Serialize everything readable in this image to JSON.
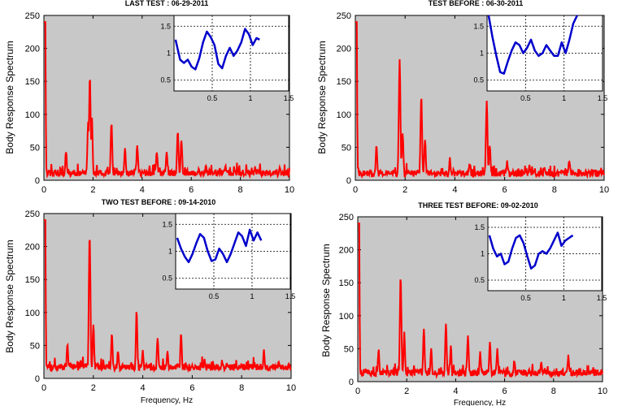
{
  "chart_data": [
    {
      "type": "line",
      "title": "LAST TEST : 06-29-2011",
      "ylabel": "Body Response Spectrum",
      "xlabel": "",
      "xlim": [
        0,
        10
      ],
      "ylim": [
        0,
        250
      ],
      "xticks": [
        0,
        2,
        4,
        6,
        8,
        10
      ],
      "yticks": [
        0,
        50,
        100,
        150,
        200,
        250
      ],
      "background": "#c8c8c8",
      "series": [
        {
          "color": "#ff0000",
          "peaks": [
            [
              0.05,
              250
            ],
            [
              0.9,
              40
            ],
            [
              1.8,
              85
            ],
            [
              1.87,
              155
            ],
            [
              1.95,
              95
            ],
            [
              2.75,
              85
            ],
            [
              3.3,
              45
            ],
            [
              3.8,
              52
            ],
            [
              4.6,
              42
            ],
            [
              5.0,
              38
            ],
            [
              5.45,
              72
            ],
            [
              5.6,
              60
            ],
            [
              6.6,
              20
            ],
            [
              7.4,
              18
            ],
            [
              8.6,
              16
            ],
            [
              9.6,
              15
            ]
          ],
          "baseline": 6
        }
      ],
      "inset": {
        "xlim": [
          0,
          1.5
        ],
        "ylim": [
          0.3,
          1.7
        ],
        "xticks": [
          0.5,
          1,
          1.5
        ],
        "yticks": [
          0.5,
          1,
          1.5
        ],
        "series": [
          {
            "color": "#0000cc",
            "x": [
              0.02,
              0.08,
              0.13,
              0.18,
              0.23,
              0.28,
              0.33,
              0.38,
              0.43,
              0.48,
              0.53,
              0.58,
              0.63,
              0.68,
              0.73,
              0.78,
              0.83,
              0.88,
              0.93,
              0.98,
              1.03,
              1.08,
              1.12
            ],
            "y": [
              1.25,
              0.88,
              0.82,
              0.88,
              0.75,
              0.7,
              0.9,
              1.2,
              1.4,
              1.3,
              1.15,
              0.8,
              0.72,
              0.95,
              1.1,
              0.95,
              1.05,
              1.2,
              1.45,
              1.35,
              1.15,
              1.28,
              1.25
            ]
          }
        ]
      }
    },
    {
      "type": "line",
      "title": "TEST BEFORE : 06-30-2011",
      "ylabel": "Body Response Spectrum",
      "xlabel": "",
      "xlim": [
        0,
        10
      ],
      "ylim": [
        0,
        250
      ],
      "xticks": [
        0,
        2,
        4,
        6,
        8,
        10
      ],
      "yticks": [
        0,
        50,
        100,
        150,
        200,
        250
      ],
      "background": "#c8c8c8",
      "series": [
        {
          "color": "#ff0000",
          "peaks": [
            [
              0.05,
              250
            ],
            [
              0.85,
              50
            ],
            [
              1.78,
              180
            ],
            [
              1.9,
              70
            ],
            [
              2.65,
              125
            ],
            [
              2.8,
              60
            ],
            [
              3.8,
              30
            ],
            [
              4.6,
              22
            ],
            [
              5.28,
              115
            ],
            [
              5.4,
              50
            ],
            [
              6.1,
              25
            ],
            [
              7.0,
              20
            ],
            [
              7.6,
              18
            ],
            [
              8.6,
              28
            ],
            [
              9.5,
              12
            ]
          ],
          "baseline": 5
        }
      ],
      "inset": {
        "xlim": [
          0,
          1.5
        ],
        "ylim": [
          0.3,
          1.7
        ],
        "xticks": [
          0.5,
          1,
          1.5
        ],
        "yticks": [
          0.5,
          1,
          1.5
        ],
        "series": [
          {
            "color": "#0000cc",
            "x": [
              0.02,
              0.07,
              0.12,
              0.17,
              0.22,
              0.27,
              0.32,
              0.37,
              0.42,
              0.47,
              0.52,
              0.57,
              0.62,
              0.67,
              0.72,
              0.77,
              0.82,
              0.87,
              0.92,
              0.97,
              1.02,
              1.07,
              1.12,
              1.17
            ],
            "y": [
              1.7,
              1.3,
              0.95,
              0.65,
              0.62,
              0.85,
              1.05,
              1.2,
              1.15,
              1.0,
              1.1,
              1.25,
              1.05,
              0.95,
              1.0,
              1.15,
              1.05,
              0.95,
              0.95,
              1.2,
              1.0,
              1.25,
              1.55,
              1.75
            ]
          }
        ]
      }
    },
    {
      "type": "line",
      "title": "TWO TEST BEFORE : 09-14-2010",
      "ylabel": "Body Response Spectrum",
      "xlabel": "Frequency, Hz",
      "xlim": [
        0,
        10
      ],
      "ylim": [
        0,
        250
      ],
      "xticks": [
        0,
        2,
        4,
        6,
        8,
        10
      ],
      "yticks": [
        0,
        50,
        100,
        150,
        200,
        250
      ],
      "background": "#c8c8c8",
      "series": [
        {
          "color": "#ff0000",
          "peaks": [
            [
              0.05,
              250
            ],
            [
              0.95,
              50
            ],
            [
              1.85,
              218
            ],
            [
              2.0,
              80
            ],
            [
              2.75,
              65
            ],
            [
              3.0,
              40
            ],
            [
              3.75,
              100
            ],
            [
              4.0,
              40
            ],
            [
              4.6,
              60
            ],
            [
              5.0,
              40
            ],
            [
              5.55,
              65
            ],
            [
              6.5,
              25
            ],
            [
              7.2,
              22
            ],
            [
              8.0,
              20
            ],
            [
              8.9,
              38
            ],
            [
              9.5,
              25
            ]
          ],
          "baseline": 12
        }
      ],
      "inset": {
        "xlim": [
          0,
          1.5
        ],
        "ylim": [
          0.3,
          1.7
        ],
        "xticks": [
          0.5,
          1,
          1.5
        ],
        "yticks": [
          0.5,
          1,
          1.5
        ],
        "series": [
          {
            "color": "#0000cc",
            "x": [
              0.02,
              0.07,
              0.12,
              0.17,
              0.22,
              0.27,
              0.32,
              0.37,
              0.42,
              0.47,
              0.52,
              0.57,
              0.62,
              0.67,
              0.72,
              0.77,
              0.82,
              0.87,
              0.92,
              0.97,
              1.02,
              1.07,
              1.12
            ],
            "y": [
              1.25,
              1.05,
              0.9,
              0.8,
              0.95,
              1.15,
              1.32,
              1.25,
              1.0,
              0.82,
              0.85,
              1.05,
              0.95,
              0.8,
              0.95,
              1.15,
              1.35,
              1.28,
              1.1,
              1.4,
              1.2,
              1.35,
              1.2
            ]
          }
        ]
      }
    },
    {
      "type": "line",
      "title": "THREE TEST BEFORE:    09-02-2010",
      "ylabel": "Body Response Spectrum",
      "xlabel": "Frequency, Hz",
      "xlim": [
        0,
        10
      ],
      "ylim": [
        0,
        250
      ],
      "xticks": [
        0,
        2,
        4,
        6,
        8,
        10
      ],
      "yticks": [
        0,
        50,
        100,
        150,
        200,
        250
      ],
      "background": "#c8c8c8",
      "series": [
        {
          "color": "#ff0000",
          "peaks": [
            [
              0.05,
              250
            ],
            [
              0.85,
              45
            ],
            [
              1.75,
              158
            ],
            [
              1.9,
              70
            ],
            [
              2.7,
              78
            ],
            [
              3.0,
              45
            ],
            [
              3.6,
              85
            ],
            [
              3.8,
              50
            ],
            [
              4.5,
              65
            ],
            [
              5.0,
              40
            ],
            [
              5.4,
              58
            ],
            [
              5.7,
              45
            ],
            [
              6.4,
              30
            ],
            [
              7.5,
              25
            ],
            [
              8.6,
              35
            ],
            [
              9.4,
              20
            ]
          ],
          "baseline": 8
        }
      ],
      "inset": {
        "xlim": [
          0,
          1.5
        ],
        "ylim": [
          0.3,
          1.7
        ],
        "xticks": [
          0.5,
          1,
          1.5
        ],
        "yticks": [
          0.5,
          1,
          1.5
        ],
        "series": [
          {
            "color": "#0000cc",
            "x": [
              0.02,
              0.07,
              0.12,
              0.17,
              0.22,
              0.27,
              0.32,
              0.37,
              0.42,
              0.47,
              0.52,
              0.57,
              0.62,
              0.67,
              0.72,
              0.77,
              0.82,
              0.87,
              0.92,
              0.97,
              1.02,
              1.07,
              1.12
            ],
            "y": [
              1.35,
              1.1,
              0.95,
              1.0,
              0.8,
              0.85,
              1.1,
              1.3,
              1.35,
              1.2,
              0.95,
              0.72,
              0.78,
              1.0,
              1.05,
              1.0,
              1.1,
              1.25,
              1.4,
              1.15,
              1.25,
              1.3,
              1.35
            ]
          }
        ]
      }
    }
  ]
}
